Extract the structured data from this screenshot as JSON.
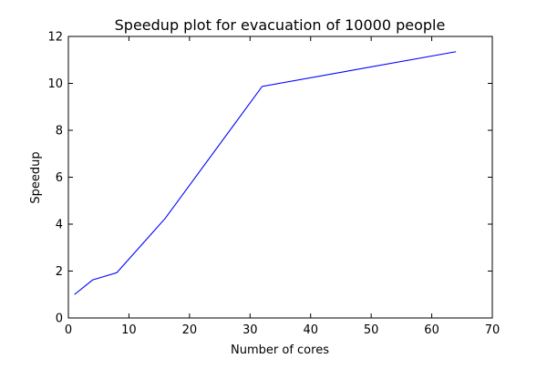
{
  "chart_data": {
    "type": "line",
    "title": "Speedup plot for evacuation of 10000 people",
    "xlabel": "Number of cores",
    "ylabel": "Speedup",
    "xlim": [
      0,
      70
    ],
    "ylim": [
      0,
      12
    ],
    "xticks": [
      0,
      10,
      20,
      30,
      40,
      50,
      60,
      70
    ],
    "yticks": [
      0,
      2,
      4,
      6,
      8,
      10,
      12
    ],
    "grid": false,
    "legend": "none",
    "series": [
      {
        "color": "#0000ff",
        "x": [
          1,
          4,
          8,
          16,
          32,
          64
        ],
        "y": [
          1.0,
          1.62,
          1.93,
          4.25,
          9.87,
          11.35
        ]
      }
    ]
  }
}
